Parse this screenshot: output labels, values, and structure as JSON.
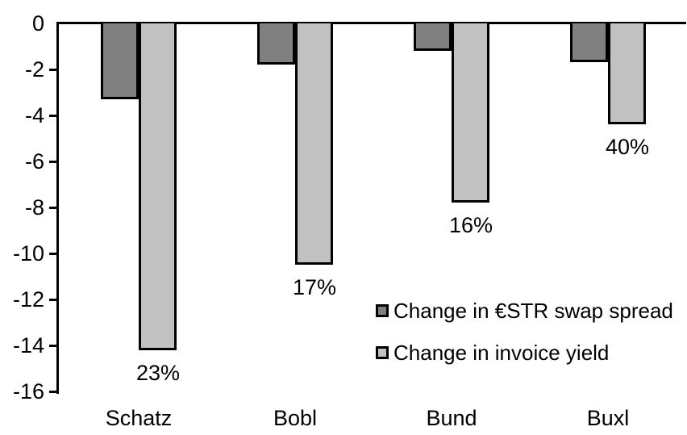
{
  "chart_data": {
    "type": "bar",
    "categories": [
      "Schatz",
      "Bobl",
      "Bund",
      "Buxl"
    ],
    "series": [
      {
        "name": "Change in €STR swap spread",
        "color": "#808080",
        "values": [
          -3.3,
          -1.8,
          -1.2,
          -1.7
        ]
      },
      {
        "name": "Change in invoice yield",
        "color": "#c1c1c1",
        "values": [
          -14.2,
          -10.5,
          -7.8,
          -4.4
        ],
        "bar_labels": [
          "23%",
          "17%",
          "16%",
          "40%"
        ]
      }
    ],
    "yticks": [
      0,
      -2,
      -4,
      -6,
      -8,
      -10,
      -12,
      -14,
      -16
    ],
    "ylim": [
      -16,
      0
    ],
    "xlabel": "",
    "ylabel": "",
    "title": "",
    "grid": false,
    "legend_position": "inside-lower-right",
    "bar_border_color": "#000000"
  }
}
